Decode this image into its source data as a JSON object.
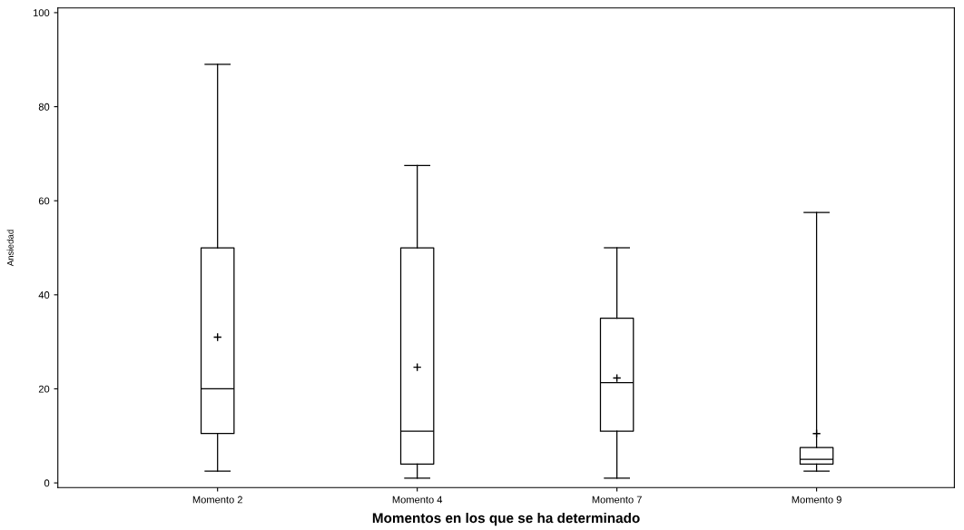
{
  "chart_data": {
    "type": "box",
    "xlabel": "Momentos en los que se ha determinado",
    "ylabel": "Ansiedad",
    "categories": [
      "Momento 2",
      "Momento 4",
      "Momento 7",
      "Momento 9"
    ],
    "boxes": [
      {
        "low": 2.5,
        "q1": 10.5,
        "median": 20,
        "q3": 50,
        "high": 89,
        "mean": 31
      },
      {
        "low": 1,
        "q1": 4,
        "median": 11,
        "q3": 50,
        "high": 67.5,
        "mean": 24.6
      },
      {
        "low": 1,
        "q1": 11,
        "median": 21.3,
        "q3": 35,
        "high": 50,
        "mean": 22.3
      },
      {
        "low": 2.5,
        "q1": 4,
        "median": 5,
        "q3": 7.5,
        "high": 57.5,
        "mean": 10.5
      }
    ],
    "ylim": [
      -1,
      101
    ],
    "yticks": [
      0,
      20,
      40,
      60,
      80,
      100
    ],
    "grid": false
  }
}
